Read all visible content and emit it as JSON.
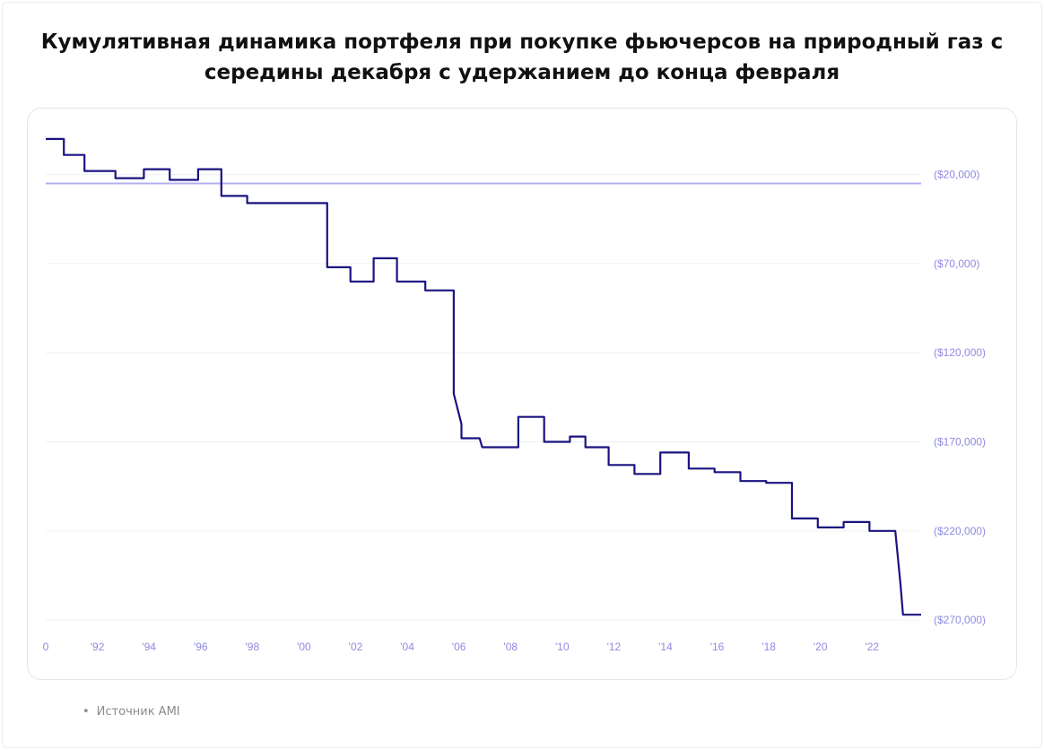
{
  "title": "Кумулятивная динамика портфеля при покупке фьючерсов на природный газ с середины декабря с удержанием до конца февраля",
  "source": {
    "bullet": "•",
    "text": "Источник AMI"
  },
  "colors": {
    "line": "#1a1380",
    "zero_line": "#b3b0f0",
    "grid": "#f0f0f5",
    "tick_text": "#8f8ae0"
  },
  "chart_data": {
    "type": "line",
    "title": "",
    "xlabel": "",
    "ylabel": "",
    "xlim": [
      1990,
      2023.9
    ],
    "ylim": [
      -280000,
      10000
    ],
    "grid": true,
    "x_ticks": [
      {
        "value": 1990,
        "label": "0"
      },
      {
        "value": 1992,
        "label": "'92"
      },
      {
        "value": 1994,
        "label": "'94"
      },
      {
        "value": 1996,
        "label": "'96"
      },
      {
        "value": 1998,
        "label": "'98"
      },
      {
        "value": 2000,
        "label": "'00"
      },
      {
        "value": 2002,
        "label": "'02"
      },
      {
        "value": 2004,
        "label": "'04"
      },
      {
        "value": 2006,
        "label": "'06"
      },
      {
        "value": 2008,
        "label": "'08"
      },
      {
        "value": 2010,
        "label": "'10"
      },
      {
        "value": 2012,
        "label": "'12"
      },
      {
        "value": 2014,
        "label": "'14"
      },
      {
        "value": 2016,
        "label": "'16"
      },
      {
        "value": 2018,
        "label": "'18"
      },
      {
        "value": 2020,
        "label": "'20"
      },
      {
        "value": 2022,
        "label": "'22"
      }
    ],
    "y_ticks": [
      {
        "value": -20000,
        "label": "($20,000)"
      },
      {
        "value": -70000,
        "label": "($70,000)"
      },
      {
        "value": -120000,
        "label": "($120,000)"
      },
      {
        "value": -170000,
        "label": "($170,000)"
      },
      {
        "value": -220000,
        "label": "($220,000)"
      },
      {
        "value": -270000,
        "label": "($270,000)"
      }
    ],
    "reference_line": -25000,
    "series": [
      {
        "values": [
          [
            1990.0,
            0
          ],
          [
            1990.7,
            0
          ],
          [
            1990.7,
            -9000
          ],
          [
            1991.5,
            -9000
          ],
          [
            1991.5,
            -18000
          ],
          [
            1992.7,
            -18000
          ],
          [
            1992.7,
            -22000
          ],
          [
            1993.8,
            -22000
          ],
          [
            1993.8,
            -17000
          ],
          [
            1994.8,
            -17000
          ],
          [
            1994.8,
            -23000
          ],
          [
            1995.9,
            -23000
          ],
          [
            1995.9,
            -17000
          ],
          [
            1996.8,
            -17000
          ],
          [
            1996.8,
            -32000
          ],
          [
            1997.8,
            -32000
          ],
          [
            1997.8,
            -36000
          ],
          [
            2000.9,
            -36000
          ],
          [
            2000.9,
            -72000
          ],
          [
            2001.8,
            -72000
          ],
          [
            2001.8,
            -80000
          ],
          [
            2002.7,
            -80000
          ],
          [
            2002.7,
            -67000
          ],
          [
            2003.6,
            -67000
          ],
          [
            2003.6,
            -80000
          ],
          [
            2004.7,
            -80000
          ],
          [
            2004.7,
            -85000
          ],
          [
            2005.8,
            -85000
          ],
          [
            2005.8,
            -143000
          ],
          [
            2006.1,
            -160000
          ],
          [
            2006.1,
            -168000
          ],
          [
            2006.8,
            -168000
          ],
          [
            2006.9,
            -173000
          ],
          [
            2008.3,
            -173000
          ],
          [
            2008.3,
            -156000
          ],
          [
            2009.3,
            -156000
          ],
          [
            2009.3,
            -170000
          ],
          [
            2010.3,
            -170000
          ],
          [
            2010.3,
            -167000
          ],
          [
            2010.9,
            -167000
          ],
          [
            2010.9,
            -173000
          ],
          [
            2011.8,
            -173000
          ],
          [
            2011.8,
            -183000
          ],
          [
            2012.8,
            -183000
          ],
          [
            2012.8,
            -188000
          ],
          [
            2013.8,
            -188000
          ],
          [
            2013.8,
            -176000
          ],
          [
            2014.9,
            -176000
          ],
          [
            2014.9,
            -185000
          ],
          [
            2015.9,
            -185000
          ],
          [
            2015.9,
            -187000
          ],
          [
            2016.9,
            -187000
          ],
          [
            2016.9,
            -192000
          ],
          [
            2017.9,
            -192000
          ],
          [
            2017.9,
            -193000
          ],
          [
            2018.9,
            -193000
          ],
          [
            2018.9,
            -213000
          ],
          [
            2019.9,
            -213000
          ],
          [
            2019.9,
            -218000
          ],
          [
            2020.9,
            -218000
          ],
          [
            2020.9,
            -215000
          ],
          [
            2021.9,
            -215000
          ],
          [
            2021.9,
            -220000
          ],
          [
            2022.9,
            -220000
          ],
          [
            2023.1,
            -250000
          ],
          [
            2023.2,
            -267000
          ],
          [
            2023.9,
            -267000
          ]
        ]
      }
    ]
  }
}
